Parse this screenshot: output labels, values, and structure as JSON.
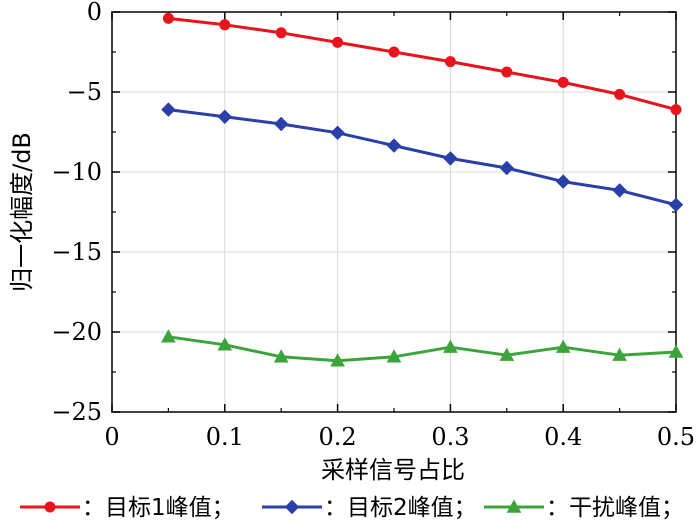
{
  "chart_data": {
    "type": "line",
    "xlabel": "采样信号占比",
    "ylabel": "归一化幅度/dB",
    "xlim": [
      0,
      0.5
    ],
    "ylim": [
      -25,
      0
    ],
    "xticks": [
      0,
      0.1,
      0.2,
      0.3,
      0.4,
      0.5
    ],
    "xtick_labels": [
      "0",
      "0.1",
      "0.2",
      "0.3",
      "0.4",
      "0.5"
    ],
    "yticks": [
      0,
      -5,
      -10,
      -15,
      -20,
      -25
    ],
    "ytick_labels": [
      "0",
      "−5",
      "−10",
      "−15",
      "−20",
      "−25"
    ],
    "grid": true,
    "legend_position": "bottom",
    "x": [
      0.05,
      0.1,
      0.15,
      0.2,
      0.25,
      0.3,
      0.35,
      0.4,
      0.45,
      0.5
    ],
    "series": [
      {
        "name": "：目标1峰值；",
        "color": "#e8141c",
        "marker": "circle",
        "values": [
          -0.4,
          -0.8,
          -1.3,
          -1.9,
          -2.5,
          -3.1,
          -3.75,
          -4.4,
          -5.15,
          -6.1
        ]
      },
      {
        "name": "：目标2峰值；",
        "color": "#2a3fa8",
        "marker": "diamond",
        "values": [
          -6.1,
          -6.55,
          -7.0,
          -7.55,
          -8.35,
          -9.15,
          -9.75,
          -10.6,
          -11.15,
          -12.05
        ]
      },
      {
        "name": "：干扰峰值；",
        "color": "#3ba53b",
        "marker": "triangle",
        "values": [
          -20.3,
          -20.8,
          -21.55,
          -21.8,
          -21.55,
          -20.95,
          -21.45,
          -20.95,
          -21.45,
          -21.25
        ]
      }
    ]
  }
}
